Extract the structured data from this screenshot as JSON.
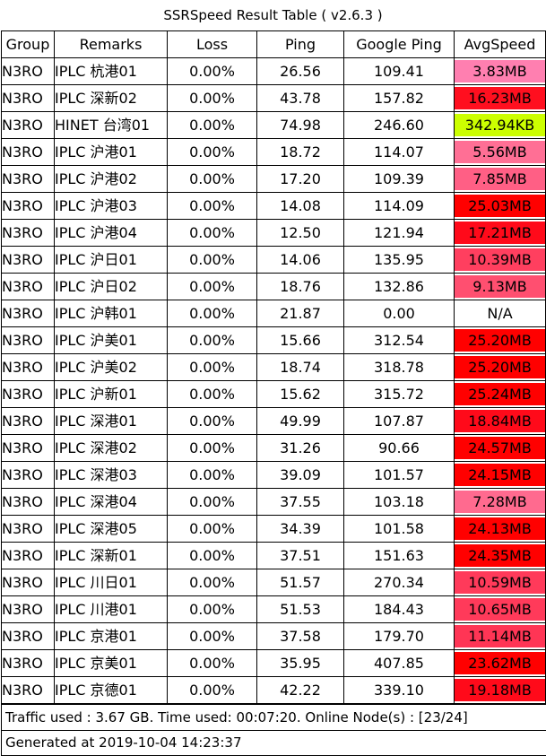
{
  "title": "SSRSpeed Result Table ( v2.6.3 )",
  "columns": [
    "Group",
    "Remarks",
    "Loss",
    "Ping",
    "Google Ping",
    "AvgSpeed"
  ],
  "rows": [
    {
      "group": "N3RO",
      "remarks": "IPLC 杭港01",
      "loss": "0.00%",
      "ping": "26.56",
      "google_ping": "109.41",
      "avg_speed": "3.83MB",
      "speed_color": "#ff7fb0"
    },
    {
      "group": "N3RO",
      "remarks": "IPLC 深新02",
      "loss": "0.00%",
      "ping": "43.78",
      "google_ping": "157.82",
      "avg_speed": "16.23MB",
      "speed_color": "#ff0f1f"
    },
    {
      "group": "N3RO",
      "remarks": "HINET 台湾01",
      "loss": "0.00%",
      "ping": "74.98",
      "google_ping": "246.60",
      "avg_speed": "342.94KB",
      "speed_color": "#ccff00"
    },
    {
      "group": "N3RO",
      "remarks": "IPLC 沪港01",
      "loss": "0.00%",
      "ping": "18.72",
      "google_ping": "114.07",
      "avg_speed": "5.56MB",
      "speed_color": "#ff6f95"
    },
    {
      "group": "N3RO",
      "remarks": "IPLC 沪港02",
      "loss": "0.00%",
      "ping": "17.20",
      "google_ping": "109.39",
      "avg_speed": "7.85MB",
      "speed_color": "#ff5f85"
    },
    {
      "group": "N3RO",
      "remarks": "IPLC 沪港03",
      "loss": "0.00%",
      "ping": "14.08",
      "google_ping": "114.09",
      "avg_speed": "25.03MB",
      "speed_color": "#ff0000"
    },
    {
      "group": "N3RO",
      "remarks": "IPLC 沪港04",
      "loss": "0.00%",
      "ping": "12.50",
      "google_ping": "121.94",
      "avg_speed": "17.21MB",
      "speed_color": "#ff0a1a"
    },
    {
      "group": "N3RO",
      "remarks": "IPLC 沪日01",
      "loss": "0.00%",
      "ping": "14.06",
      "google_ping": "135.95",
      "avg_speed": "10.39MB",
      "speed_color": "#ff3f5f"
    },
    {
      "group": "N3RO",
      "remarks": "IPLC 沪日02",
      "loss": "0.00%",
      "ping": "18.76",
      "google_ping": "132.86",
      "avg_speed": "9.13MB",
      "speed_color": "#ff4f70"
    },
    {
      "group": "N3RO",
      "remarks": "IPLC 沪韩01",
      "loss": "0.00%",
      "ping": "21.87",
      "google_ping": "0.00",
      "avg_speed": "N/A",
      "speed_color": "#ffffff"
    },
    {
      "group": "N3RO",
      "remarks": "IPLC 沪美01",
      "loss": "0.00%",
      "ping": "15.66",
      "google_ping": "312.54",
      "avg_speed": "25.20MB",
      "speed_color": "#ff0000"
    },
    {
      "group": "N3RO",
      "remarks": "IPLC 沪美02",
      "loss": "0.00%",
      "ping": "18.74",
      "google_ping": "318.78",
      "avg_speed": "25.20MB",
      "speed_color": "#ff0000"
    },
    {
      "group": "N3RO",
      "remarks": "IPLC 沪新01",
      "loss": "0.00%",
      "ping": "15.62",
      "google_ping": "315.72",
      "avg_speed": "25.24MB",
      "speed_color": "#ff0000"
    },
    {
      "group": "N3RO",
      "remarks": "IPLC 深港01",
      "loss": "0.00%",
      "ping": "49.99",
      "google_ping": "107.87",
      "avg_speed": "18.84MB",
      "speed_color": "#ff0a1a"
    },
    {
      "group": "N3RO",
      "remarks": "IPLC 深港02",
      "loss": "0.00%",
      "ping": "31.26",
      "google_ping": "90.66",
      "avg_speed": "24.57MB",
      "speed_color": "#ff0000"
    },
    {
      "group": "N3RO",
      "remarks": "IPLC 深港03",
      "loss": "0.00%",
      "ping": "39.09",
      "google_ping": "101.57",
      "avg_speed": "24.15MB",
      "speed_color": "#ff0000"
    },
    {
      "group": "N3RO",
      "remarks": "IPLC 深港04",
      "loss": "0.00%",
      "ping": "37.55",
      "google_ping": "103.18",
      "avg_speed": "7.28MB",
      "speed_color": "#ff6a8f"
    },
    {
      "group": "N3RO",
      "remarks": "IPLC 深港05",
      "loss": "0.00%",
      "ping": "34.39",
      "google_ping": "101.58",
      "avg_speed": "24.13MB",
      "speed_color": "#ff0000"
    },
    {
      "group": "N3RO",
      "remarks": "IPLC 深新01",
      "loss": "0.00%",
      "ping": "37.51",
      "google_ping": "151.63",
      "avg_speed": "24.35MB",
      "speed_color": "#ff0000"
    },
    {
      "group": "N3RO",
      "remarks": "IPLC 川日01",
      "loss": "0.00%",
      "ping": "51.57",
      "google_ping": "270.34",
      "avg_speed": "10.59MB",
      "speed_color": "#ff3a5a"
    },
    {
      "group": "N3RO",
      "remarks": "IPLC 川港01",
      "loss": "0.00%",
      "ping": "51.53",
      "google_ping": "184.43",
      "avg_speed": "10.65MB",
      "speed_color": "#ff3a5a"
    },
    {
      "group": "N3RO",
      "remarks": "IPLC 京港01",
      "loss": "0.00%",
      "ping": "37.58",
      "google_ping": "179.70",
      "avg_speed": "11.14MB",
      "speed_color": "#ff3555"
    },
    {
      "group": "N3RO",
      "remarks": "IPLC 京美01",
      "loss": "0.00%",
      "ping": "35.95",
      "google_ping": "407.85",
      "avg_speed": "23.62MB",
      "speed_color": "#ff0000"
    },
    {
      "group": "N3RO",
      "remarks": "IPLC 京德01",
      "loss": "0.00%",
      "ping": "42.22",
      "google_ping": "339.10",
      "avg_speed": "19.18MB",
      "speed_color": "#ff0a1a"
    }
  ],
  "footer": {
    "traffic": "Traffic used : 3.67 GB. Time used: 00:07:20. Online Node(s) : [23/24]",
    "generated": "Generated at 2019-10-04 14:23:37"
  }
}
